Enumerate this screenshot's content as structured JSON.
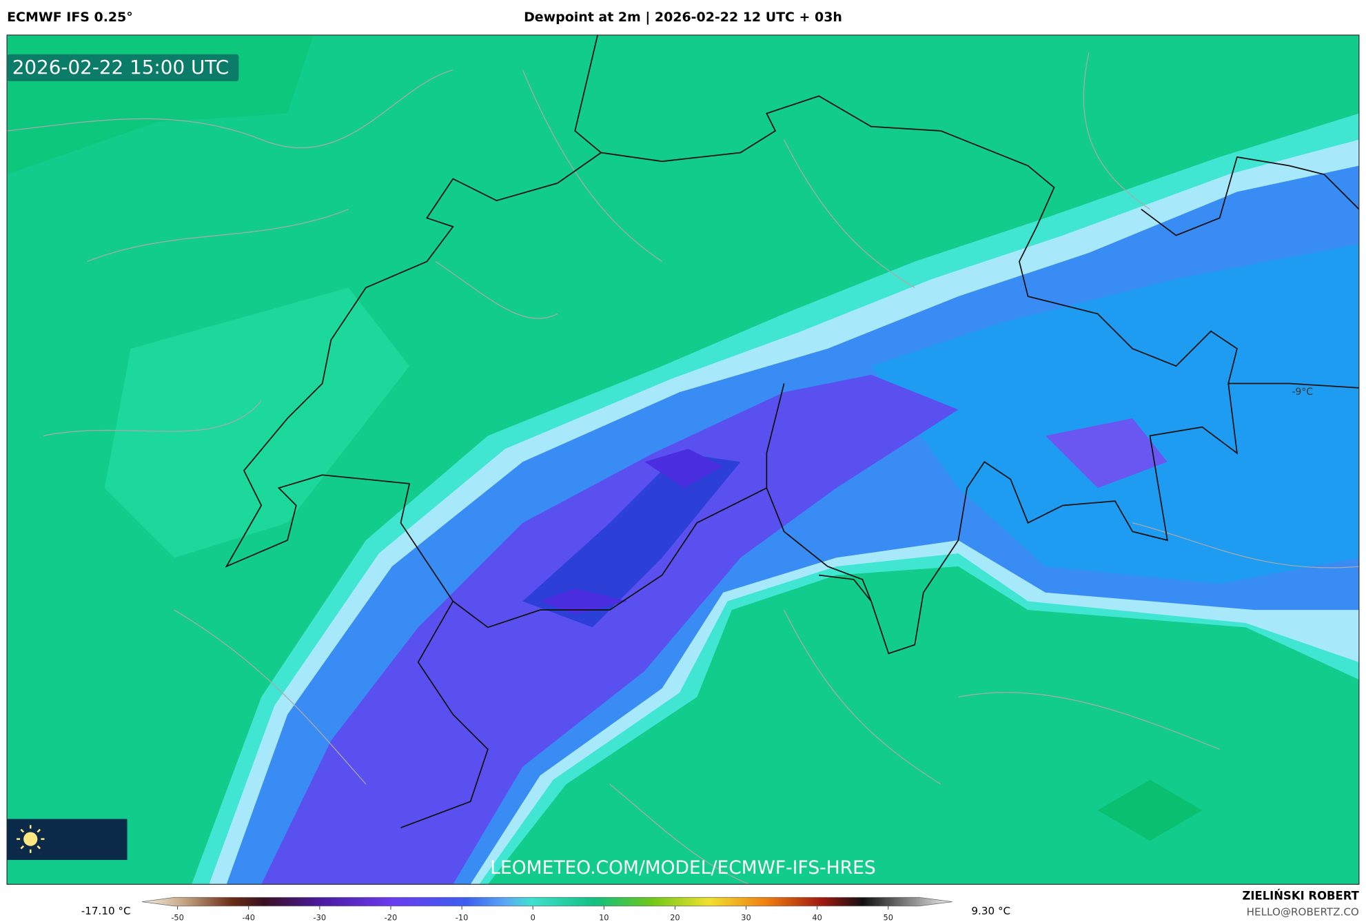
{
  "header": {
    "model": "ECMWF IFS 0.25°",
    "title": "Dewpoint at 2m | 2026-02-22 12 UTC + 03h"
  },
  "map": {
    "valid_time": "2026-02-22 15:00 UTC",
    "watermark": "LEOMETEO.COM/MODEL/ECMWF-IFS-HRES",
    "labels": [
      "-9°C"
    ]
  },
  "legend": {
    "min_label": "-17.10 °C",
    "max_label": "9.30 °C",
    "range": [
      -55,
      59
    ],
    "ticks": [
      -50,
      -40,
      -30,
      -20,
      -10,
      0,
      10,
      20,
      30,
      40,
      50
    ]
  },
  "footer": {
    "author": "ZIELIŃSKI ROBERT",
    "email": "HELLO@ROBERTZ.CO"
  }
}
